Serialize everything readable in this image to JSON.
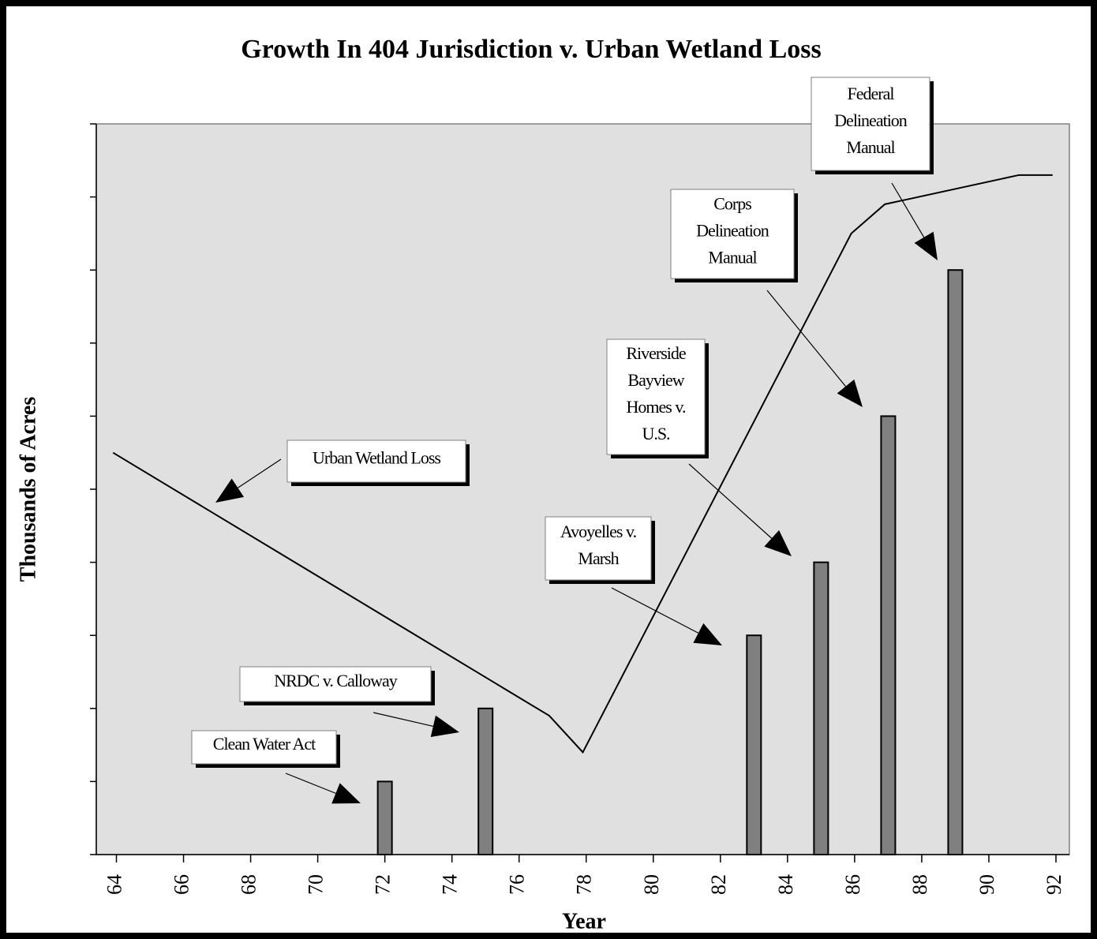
{
  "chart_data": {
    "type": "bar-line",
    "title": "Growth In 404 Jurisdiction v. Urban Wetland Loss",
    "x_label": "Year",
    "y_label": "Thousands of Acres",
    "xlim": [
      63.4,
      92.4
    ],
    "xticks": [
      64,
      66,
      68,
      70,
      72,
      74,
      76,
      78,
      80,
      82,
      84,
      86,
      88,
      90,
      92
    ],
    "ylim": [
      0,
      10
    ],
    "yticks": [
      0,
      1,
      2,
      3,
      4,
      5,
      6,
      7,
      8,
      9,
      10
    ],
    "bars": {
      "color": "#808080",
      "x": [
        72,
        75,
        83,
        85,
        87,
        89
      ],
      "values": [
        1,
        2,
        3,
        4,
        6,
        8
      ]
    },
    "line": {
      "color": "#000000",
      "x": [
        63.9,
        76.9,
        77.9,
        85.9,
        86.9,
        90.9,
        91.9
      ],
      "values": [
        5.5,
        1.9,
        1.4,
        8.5,
        8.9,
        9.3,
        9.3
      ]
    },
    "annotations": [
      {
        "lines": [
          "Federal",
          "Delineation",
          "Manual"
        ]
      },
      {
        "lines": [
          "Corps",
          "Delineation",
          "Manual"
        ]
      },
      {
        "lines": [
          "Riverside",
          "Bayview",
          "Homes v.",
          "U.S."
        ]
      },
      {
        "lines": [
          "Urban Wetland Loss"
        ]
      },
      {
        "lines": [
          "Avoyelles v.",
          "Marsh"
        ]
      },
      {
        "lines": [
          "NRDC v. Calloway"
        ]
      },
      {
        "lines": [
          "Clean Water Act"
        ]
      }
    ]
  }
}
